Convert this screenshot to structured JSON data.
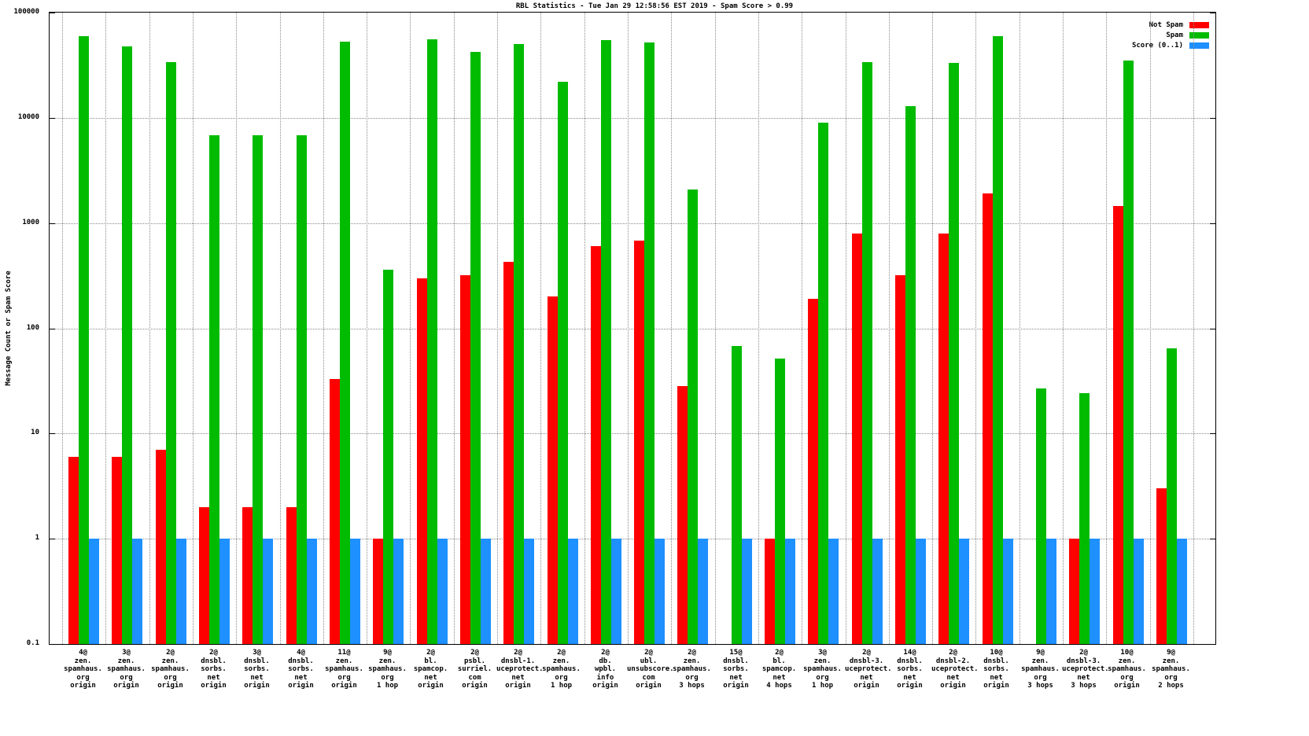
{
  "colors": {
    "background": "#ffffff",
    "axis": "#000000",
    "grid": "#8a8a8a",
    "not_spam": "#ff0000",
    "spam": "#00bb00",
    "score": "#1e90ff"
  },
  "chart_data": {
    "type": "bar",
    "title": "RBL Statistics - Tue Jan 29 12:58:56 EST 2019 - Spam Score > 0.99",
    "ylabel": "Message Count or Spam Score",
    "xlabel": "",
    "y_scale": "log",
    "ylim": [
      0.1,
      100000
    ],
    "yticks": [
      0.1,
      1,
      10,
      100,
      1000,
      10000,
      100000
    ],
    "ytick_labels": [
      "0.1",
      "1",
      "10",
      "100",
      "1000",
      "10000",
      "100000"
    ],
    "grid": true,
    "legend_position": "top-right-inside",
    "categories": [
      [
        "4@",
        "zen.",
        "spamhaus.",
        "org",
        "origin"
      ],
      [
        "3@",
        "zen.",
        "spamhaus.",
        "org",
        "origin"
      ],
      [
        "2@",
        "zen.",
        "spamhaus.",
        "org",
        "origin"
      ],
      [
        "2@",
        "dnsbl.",
        "sorbs.",
        "net",
        "origin"
      ],
      [
        "3@",
        "dnsbl.",
        "sorbs.",
        "net",
        "origin"
      ],
      [
        "4@",
        "dnsbl.",
        "sorbs.",
        "net",
        "origin"
      ],
      [
        "11@",
        "zen.",
        "spamhaus.",
        "org",
        "origin"
      ],
      [
        "9@",
        "zen.",
        "spamhaus.",
        "org",
        "1 hop"
      ],
      [
        "2@",
        "bl.",
        "spamcop.",
        "net",
        "origin"
      ],
      [
        "2@",
        "psbl.",
        "surriel.",
        "com",
        "origin"
      ],
      [
        "2@",
        "dnsbl-1.",
        "uceprotect.",
        "net",
        "origin"
      ],
      [
        "2@",
        "zen.",
        "spamhaus.",
        "org",
        "1 hop"
      ],
      [
        "2@",
        "db.",
        "wpbl.",
        "info",
        "origin"
      ],
      [
        "2@",
        "ubl.",
        "unsubscore.",
        "com",
        "origin"
      ],
      [
        "2@",
        "zen.",
        "spamhaus.",
        "org",
        "3 hops"
      ],
      [
        "15@",
        "dnsbl.",
        "sorbs.",
        "net",
        "origin"
      ],
      [
        "2@",
        "bl.",
        "spamcop.",
        "net",
        "4 hops"
      ],
      [
        "3@",
        "zen.",
        "spamhaus.",
        "org",
        "1 hop"
      ],
      [
        "2@",
        "dnsbl-3.",
        "uceprotect.",
        "net",
        "origin"
      ],
      [
        "14@",
        "dnsbl.",
        "sorbs.",
        "net",
        "origin"
      ],
      [
        "2@",
        "dnsbl-2.",
        "uceprotect.",
        "net",
        "origin"
      ],
      [
        "10@",
        "dnsbl.",
        "sorbs.",
        "net",
        "origin"
      ],
      [
        "9@",
        "zen.",
        "spamhaus.",
        "org",
        "3 hops"
      ],
      [
        "2@",
        "dnsbl-3.",
        "uceprotect.",
        "net",
        "3 hops"
      ],
      [
        "10@",
        "zen.",
        "spamhaus.",
        "org",
        "origin"
      ],
      [
        "9@",
        "zen.",
        "spamhaus.",
        "org",
        "2 hops"
      ]
    ],
    "series": [
      {
        "key": "not-spam",
        "name": "Not Spam",
        "color": "#ff0000",
        "values": [
          6,
          6,
          7,
          2,
          2,
          2,
          33,
          1,
          300,
          320,
          430,
          200,
          600,
          680,
          28,
          0,
          1,
          190,
          800,
          320,
          800,
          1900,
          0,
          1,
          1450,
          3
        ]
      },
      {
        "key": "spam",
        "name": "Spam",
        "color": "#00bb00",
        "values": [
          60000,
          48000,
          34000,
          6800,
          6800,
          6800,
          53000,
          360,
          56000,
          42000,
          50000,
          22000,
          55000,
          52000,
          2100,
          68,
          52,
          9000,
          34000,
          13000,
          33000,
          60000,
          27,
          24,
          35000,
          65
        ]
      },
      {
        "key": "score",
        "name": "Score (0..1)",
        "color": "#1e90ff",
        "values": [
          1,
          1,
          1,
          1,
          1,
          1,
          1,
          1,
          1,
          1,
          1,
          1,
          1,
          1,
          1,
          1,
          1,
          1,
          1,
          1,
          1,
          1,
          1,
          1,
          1,
          1
        ]
      }
    ]
  }
}
